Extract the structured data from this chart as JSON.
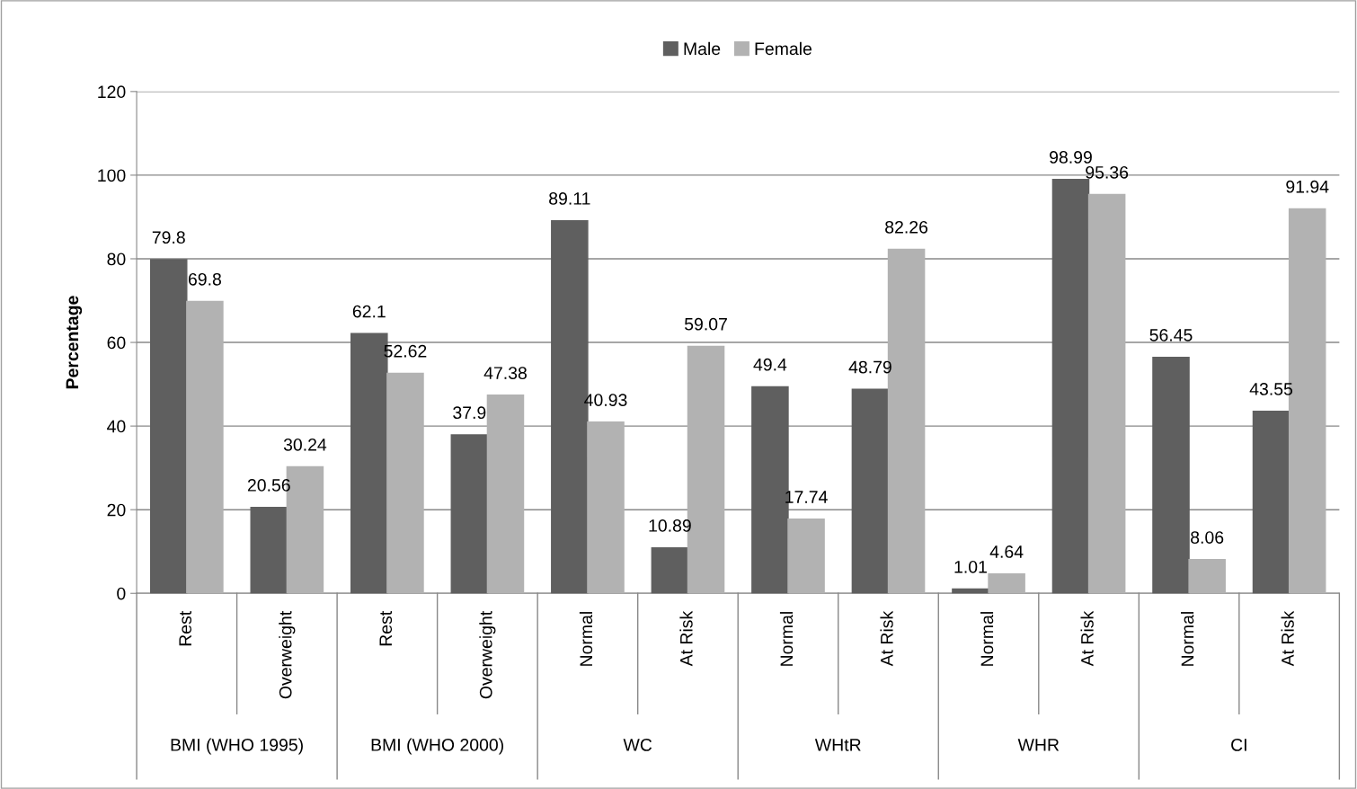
{
  "chart_data": {
    "type": "bar",
    "ylabel": "Percentage",
    "categories": [
      "Rest",
      "Overweight",
      "Rest",
      "Overweight",
      "Normal",
      "At Risk",
      "Normal",
      "At Risk",
      "Normal",
      "At Risk",
      "Normal",
      "At Risk"
    ],
    "series": [
      {
        "name": "Male",
        "color": "#5f5f5f",
        "values": [
          79.8,
          20.56,
          62.1,
          37.9,
          89.11,
          10.89,
          49.4,
          48.79,
          1.01,
          98.99,
          56.45,
          43.55
        ]
      },
      {
        "name": "Female",
        "color": "#b2b2b2",
        "values": [
          69.8,
          30.24,
          52.62,
          47.38,
          40.93,
          59.07,
          17.74,
          82.26,
          4.64,
          95.36,
          8.06,
          91.94
        ]
      }
    ],
    "annotations": [
      "BMI (WHO 1995)",
      "BMI (WHO 2000)",
      "WC",
      "WHtR",
      "WHR",
      "CI"
    ],
    "ylim": [
      0,
      120
    ],
    "yticks": [
      0,
      20,
      40,
      60,
      80,
      100,
      120
    ],
    "grid": "y",
    "legend": "top",
    "data_labels": true
  }
}
